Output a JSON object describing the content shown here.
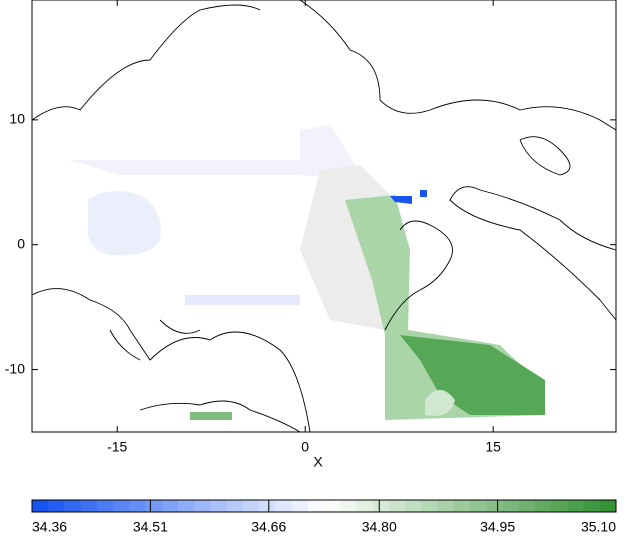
{
  "chart_data": {
    "type": "map",
    "xlabel": "X",
    "xlim": [
      -21.8,
      24.8
    ],
    "xticks": [
      -15,
      0,
      15
    ],
    "ylim": [
      -15,
      19.6
    ],
    "yticks": [
      -10,
      0,
      10
    ],
    "colorbar": {
      "lim": [
        34.36,
        35.1
      ],
      "ticks": [
        34.36,
        34.51,
        34.66,
        {
          "value": 34.8,
          "label": "34.80"
        },
        34.95,
        {
          "value": 35.1,
          "label": "35.10"
        }
      ],
      "colors": [
        "#1050f0",
        "#ffffff",
        "#2f8f2f"
      ],
      "steps": 36
    }
  }
}
